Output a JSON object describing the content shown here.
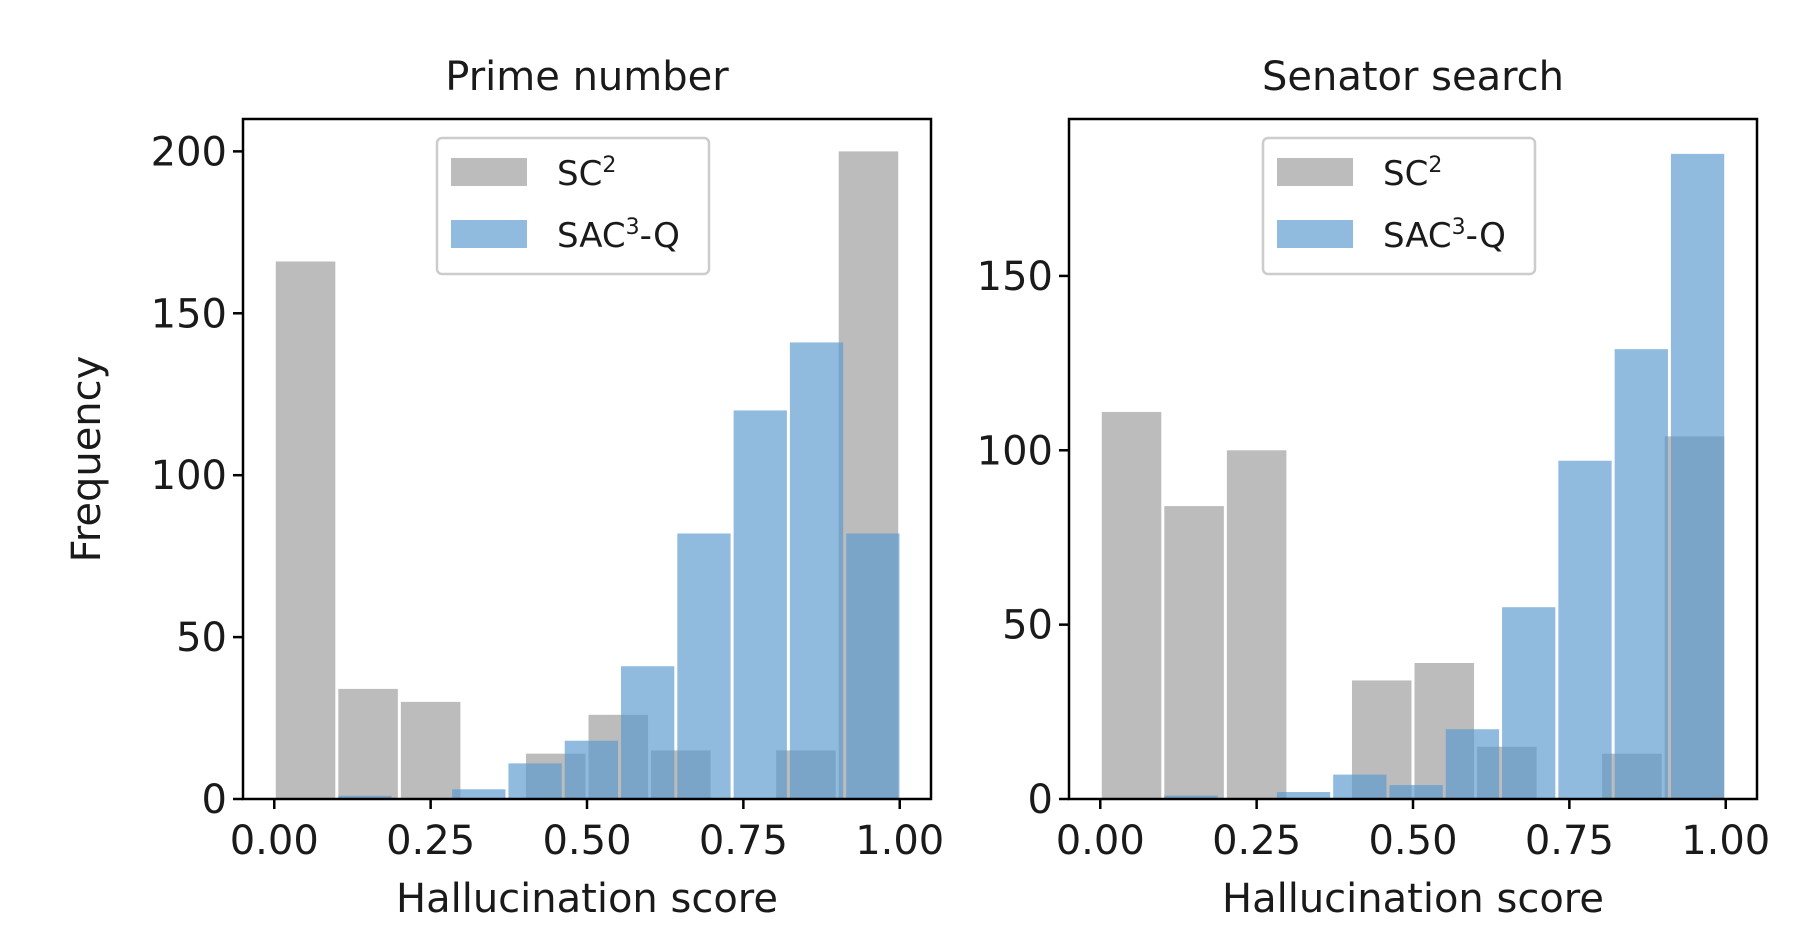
{
  "chart_data": [
    {
      "type": "bar",
      "title": "Prime number",
      "xlabel": "Hallucination score",
      "ylabel": "Frequency",
      "xlim": [
        -0.05,
        1.05
      ],
      "ylim": [
        0,
        210
      ],
      "xticks": [
        "0.00",
        "0.25",
        "0.50",
        "0.75",
        "1.00"
      ],
      "xtick_values": [
        0,
        0.25,
        0.5,
        0.75,
        1.0
      ],
      "yticks": [
        "0",
        "50",
        "100",
        "150",
        "200"
      ],
      "ytick_values": [
        0,
        50,
        100,
        150,
        200
      ],
      "grid": false,
      "legend_position": "top-center",
      "series": [
        {
          "name": "SC",
          "name_sup": "2",
          "name_suffix": "",
          "color": "#b0b0b0",
          "opacity": 0.85,
          "bin_starts": [
            0.0,
            0.1,
            0.2,
            0.4,
            0.5,
            0.6,
            0.8,
            0.9
          ],
          "bin_width": 0.1,
          "values": [
            166,
            34,
            30,
            14,
            26,
            15,
            15,
            200
          ]
        },
        {
          "name": "SAC",
          "name_sup": "3",
          "name_suffix": "-Q",
          "color": "#5b9bcf",
          "opacity": 0.68,
          "bin_starts": [
            0.1,
            0.282,
            0.372,
            0.462,
            0.552,
            0.642,
            0.732,
            0.822,
            0.912
          ],
          "bin_width": 0.09,
          "values": [
            1,
            3,
            11,
            18,
            41,
            82,
            120,
            141,
            82
          ]
        }
      ]
    },
    {
      "type": "bar",
      "title": "Senator search",
      "xlabel": "Hallucination score",
      "ylabel": "",
      "xlim": [
        -0.05,
        1.05
      ],
      "ylim": [
        0,
        195
      ],
      "xticks": [
        "0.00",
        "0.25",
        "0.50",
        "0.75",
        "1.00"
      ],
      "xtick_values": [
        0,
        0.25,
        0.5,
        0.75,
        1.0
      ],
      "yticks": [
        "0",
        "50",
        "100",
        "150"
      ],
      "ytick_values": [
        0,
        50,
        100,
        150
      ],
      "grid": false,
      "legend_position": "top-center",
      "series": [
        {
          "name": "SC",
          "name_sup": "2",
          "name_suffix": "",
          "color": "#b0b0b0",
          "opacity": 0.85,
          "bin_starts": [
            0.0,
            0.1,
            0.2,
            0.4,
            0.5,
            0.6,
            0.8,
            0.9
          ],
          "bin_width": 0.1,
          "values": [
            111,
            84,
            100,
            34,
            39,
            15,
            13,
            104
          ]
        },
        {
          "name": "SAC",
          "name_sup": "3",
          "name_suffix": "-Q",
          "color": "#5b9bcf",
          "opacity": 0.68,
          "bin_starts": [
            0.1,
            0.28,
            0.37,
            0.46,
            0.55,
            0.64,
            0.73,
            0.82,
            0.91
          ],
          "bin_width": 0.09,
          "values": [
            1,
            2,
            7,
            4,
            20,
            55,
            97,
            129,
            185
          ]
        }
      ]
    }
  ]
}
